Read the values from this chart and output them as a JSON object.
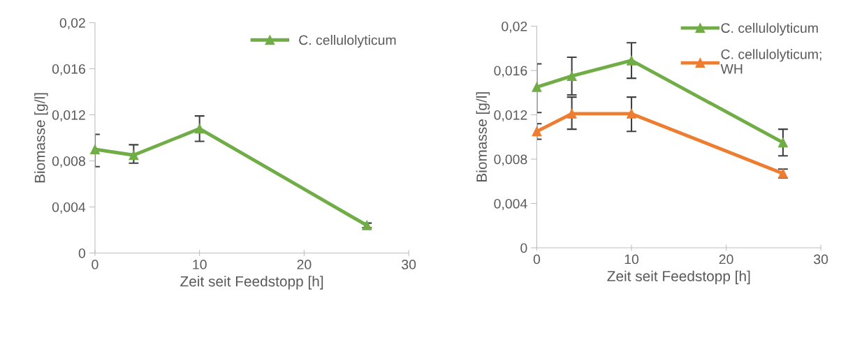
{
  "chart_data": [
    {
      "type": "line",
      "xlabel": "Zeit seit Feedstopp [h]",
      "ylabel": "Biomasse [g/l]",
      "x": [
        0,
        3.7,
        10,
        26
      ],
      "series": [
        {
          "name": "C. cellulolyticum",
          "color": "#70ad47",
          "values": [
            0.009,
            0.0085,
            0.0108,
            0.0024
          ],
          "errors": [
            [
              0.0075,
              0.0103
            ],
            [
              0.0078,
              0.0094
            ],
            [
              0.0097,
              0.0119
            ],
            [
              0.0022,
              0.0026
            ]
          ]
        }
      ],
      "xlim": [
        0,
        30
      ],
      "xticks": [
        0,
        10,
        20,
        30
      ],
      "ylim": [
        0,
        0.02
      ],
      "yticks": [
        {
          "value": 0,
          "label": "0"
        },
        {
          "value": 0.004,
          "label": "0,004"
        },
        {
          "value": 0.008,
          "label": "0,008"
        },
        {
          "value": 0.012,
          "label": "0,012"
        },
        {
          "value": 0.016,
          "label": "0,016"
        },
        {
          "value": 0.02,
          "label": "0,02"
        }
      ],
      "grid": false,
      "legend": "top right",
      "marker": "triangle",
      "line_style": "solid"
    },
    {
      "type": "line",
      "xlabel": "Zeit seit Feedstopp [h]",
      "ylabel": "Biomasse [g/l]",
      "x": [
        0,
        3.7,
        10,
        26
      ],
      "series": [
        {
          "name": "C. cellulolyticum",
          "color": "#70ad47",
          "values": [
            0.0145,
            0.0155,
            0.0169,
            0.0095
          ],
          "errors": [
            [
              0.0122,
              0.0166
            ],
            [
              0.0138,
              0.0172
            ],
            [
              0.0153,
              0.0185
            ],
            [
              0.0083,
              0.0107
            ]
          ]
        },
        {
          "name": "C. cellulolyticum;\nWH",
          "color": "#ed7d31",
          "values": [
            0.0105,
            0.0121,
            0.0121,
            0.0067
          ],
          "errors": [
            [
              0.0098,
              0.0112
            ],
            [
              0.0107,
              0.0136
            ],
            [
              0.0105,
              0.0136
            ],
            [
              0.0063,
              0.0071
            ]
          ]
        }
      ],
      "xlim": [
        0,
        30
      ],
      "xticks": [
        0,
        10,
        20,
        30
      ],
      "ylim": [
        0,
        0.02
      ],
      "yticks": [
        {
          "value": 0,
          "label": "0"
        },
        {
          "value": 0.004,
          "label": "0,004"
        },
        {
          "value": 0.008,
          "label": "0,008"
        },
        {
          "value": 0.012,
          "label": "0,012"
        },
        {
          "value": 0.016,
          "label": "0,016"
        },
        {
          "value": 0.02,
          "label": "0,02"
        }
      ],
      "grid": false,
      "legend": "right",
      "marker": "triangle",
      "line_style": "solid"
    }
  ]
}
